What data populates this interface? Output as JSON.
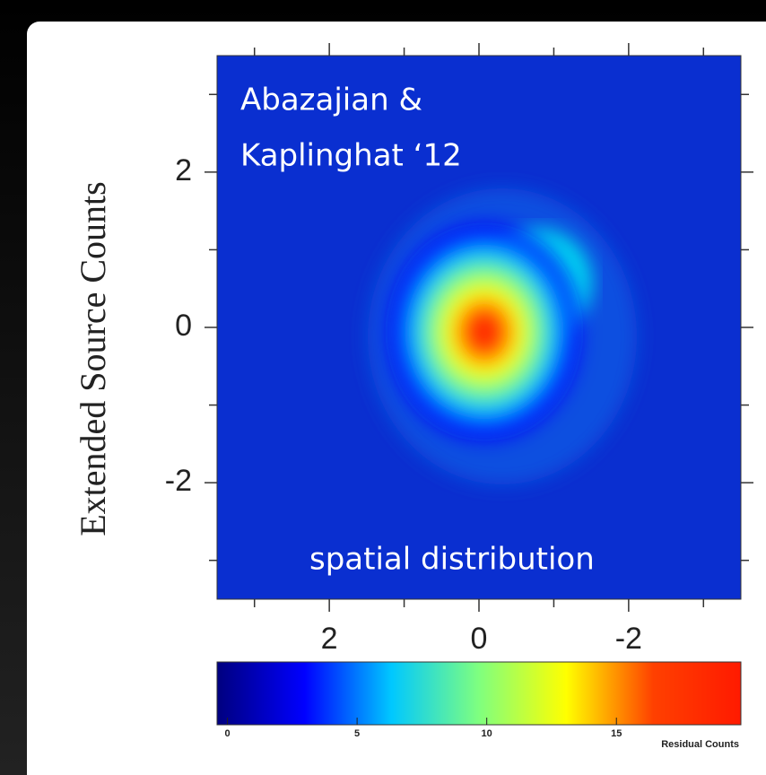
{
  "chart_data": {
    "type": "heatmap",
    "ylabel": "Extended Source Counts",
    "annotations": {
      "credit": [
        "Abazajian &",
        "Kaplinghat ‘12"
      ],
      "caption": "spatial distribution"
    },
    "xlim": [
      3.5,
      -3.5
    ],
    "xticks": [
      2,
      0,
      -2
    ],
    "xminor": [
      3,
      1,
      -1,
      -3
    ],
    "ylim": [
      -3.5,
      3.5
    ],
    "yticks": [
      -2,
      0,
      2
    ],
    "yminor": [
      -3,
      -1,
      1,
      3
    ],
    "colorbar": {
      "label": "Residual Counts",
      "lim": [
        -0.4,
        19.8
      ],
      "ticks": [
        0,
        5,
        10,
        15
      ],
      "colormap": [
        "#00007f",
        "#0000ff",
        "#00c8ff",
        "#7fff7f",
        "#ffff00",
        "#ff4000",
        "#ff1a00"
      ]
    }
  }
}
